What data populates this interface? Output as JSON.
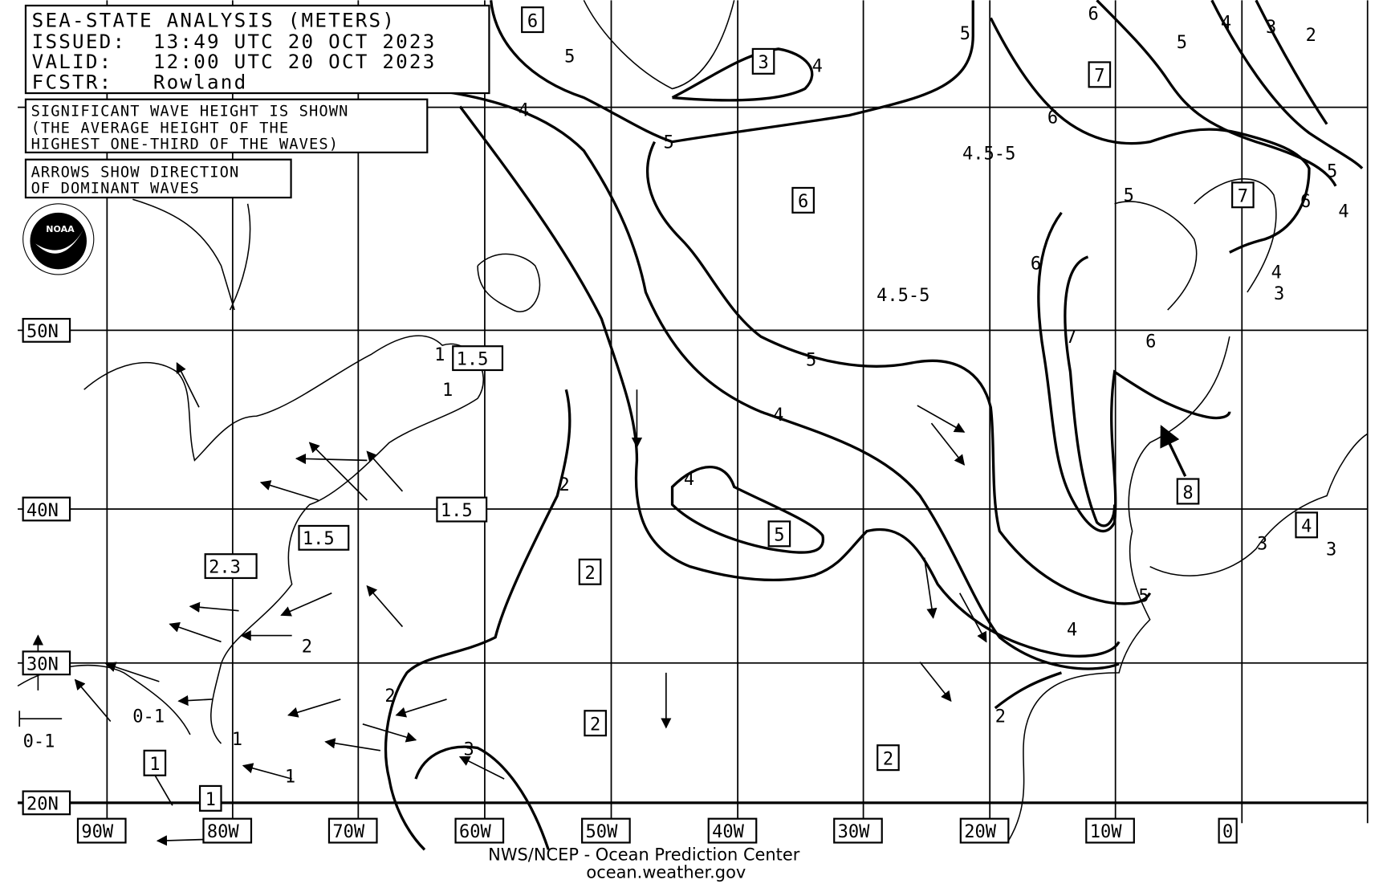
{
  "header": {
    "title": "SEA-STATE ANALYSIS (METERS)",
    "issued": "ISSUED:  13:49 UTC 20 OCT 2023",
    "valid": "VALID:   12:00 UTC 20 OCT 2023",
    "forecaster": "FCSTR:   Rowland"
  },
  "notes": {
    "wave_height": [
      "SIGNIFICANT WAVE HEIGHT IS SHOWN",
      "(THE AVERAGE HEIGHT OF THE",
      "HIGHEST ONE-THIRD OF THE WAVES)"
    ],
    "arrows": [
      "ARROWS SHOW DIRECTION",
      "OF DOMINANT WAVES"
    ]
  },
  "logo": {
    "name": "noaa-logo",
    "text": "NOAA"
  },
  "latitude_labels": [
    "50N",
    "40N",
    "30N",
    "20N"
  ],
  "longitude_labels": [
    "90W",
    "80W",
    "70W",
    "60W",
    "50W",
    "40W",
    "30W",
    "20W",
    "10W",
    "0"
  ],
  "boxed_labels": [
    "6",
    "3",
    "7",
    "6",
    "7",
    "1.5",
    "1.5",
    "1.5",
    "2.3",
    "5",
    "2",
    "8",
    "4",
    "2",
    "2",
    "1",
    "1"
  ],
  "contour_labels": [
    "5",
    "4",
    "5",
    "6",
    "5",
    "4",
    "3",
    "2",
    "4",
    "5",
    "6",
    "4.5-5",
    "5",
    "5",
    "6",
    "4",
    "6",
    "4",
    "3",
    "4.5-5",
    "6",
    "7",
    "5",
    "1",
    "1",
    "4",
    "4",
    "2",
    "5",
    "4",
    "3",
    "3",
    "2",
    "2",
    "0-1",
    "0-1",
    "1",
    "1",
    "2",
    "3"
  ],
  "footer": {
    "line1": "NWS/NCEP - Ocean Prediction Center",
    "line2": "ocean.weather.gov"
  }
}
